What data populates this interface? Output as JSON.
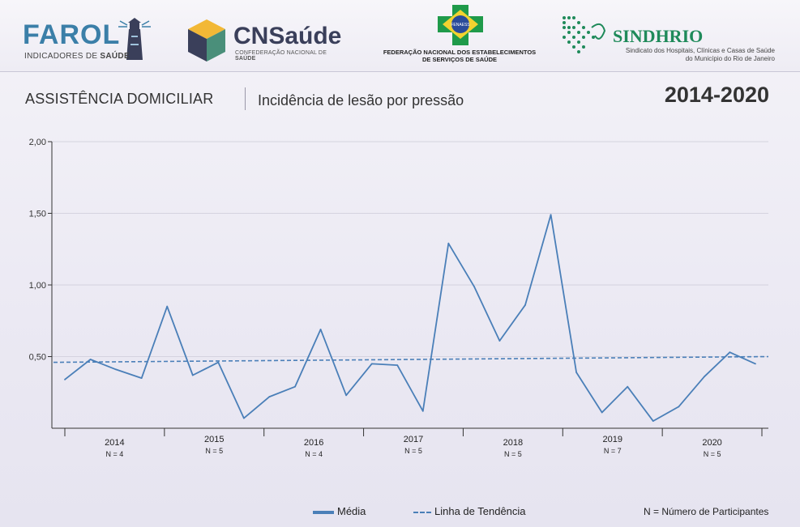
{
  "logos": {
    "farol": {
      "word": "FAROL",
      "sub_prefix": "INDICADORES DE ",
      "sub_bold": "SAÚDE"
    },
    "cnsaude": {
      "word": "CNSaúde",
      "sub_prefix": "CONFEDERAÇÃO NACIONAL DE ",
      "sub_bold": "SAÚDE"
    },
    "fenaess": {
      "badge": "FENAESS",
      "line1": "FEDERAÇÃO NACIONAL DOS ESTABELECIMENTOS",
      "line2": "DE SERVIÇOS DE SAÚDE"
    },
    "sindhrio": {
      "word": "SINDHRIO",
      "line1": "Sindicato dos Hospitais, Clínicas e Casas de Saúde",
      "line2": "do Município do Rio de Janeiro"
    }
  },
  "header": {
    "section": "ASSISTÊNCIA DOMICILIAR",
    "subtitle": "Incidência de lesão por pressão",
    "years": "2014-2020"
  },
  "colors": {
    "series": "#4a7fb8",
    "trend": "#4a7fb8",
    "grid": "#d5d3df",
    "axis": "#333333"
  },
  "chart_data": {
    "type": "line",
    "ylim": [
      0,
      2
    ],
    "y_ticks": [
      "2,00",
      "1,50",
      "1,00",
      "0,50"
    ],
    "y_tick_values": [
      2,
      1.5,
      1,
      0.5
    ],
    "grid": true,
    "legend_position": "bottom",
    "periods": [
      {
        "year": "2014",
        "n": "N = 4"
      },
      {
        "year": "2015",
        "n": "N = 5"
      },
      {
        "year": "2016",
        "n": "N = 4"
      },
      {
        "year": "2017",
        "n": "N = 5"
      },
      {
        "year": "2018",
        "n": "N = 5"
      },
      {
        "year": "2019",
        "n": "N = 7"
      },
      {
        "year": "2020",
        "n": "N = 5"
      }
    ],
    "series": [
      {
        "name": "Média",
        "values": [
          0.34,
          0.48,
          0.41,
          0.35,
          0.85,
          0.37,
          0.46,
          0.07,
          0.22,
          0.29,
          0.69,
          0.23,
          0.45,
          0.44,
          0.12,
          1.29,
          0.99,
          0.61,
          0.86,
          1.49,
          0.39,
          0.11,
          0.29,
          0.05,
          0.15,
          0.36,
          0.53,
          0.45
        ]
      },
      {
        "name": "Linha de Tendência",
        "style": "dashed",
        "start": 0.46,
        "end": 0.5
      }
    ]
  },
  "legend": {
    "media": "Média",
    "trend": "Linha de Tendência",
    "note": "N = Número de Participantes"
  }
}
